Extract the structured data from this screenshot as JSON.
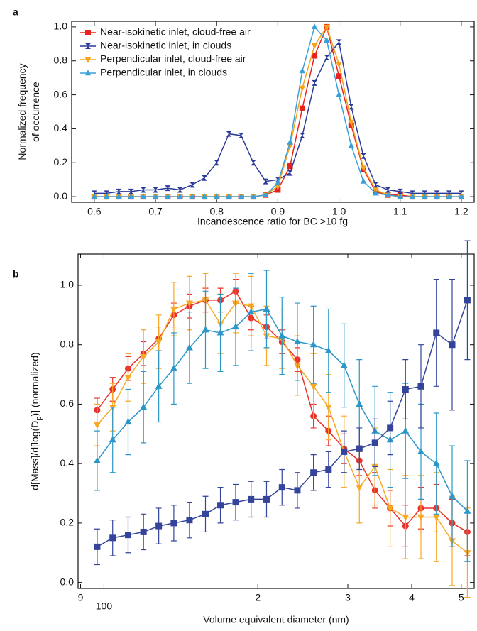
{
  "chart_data": [
    {
      "type": "line",
      "panel": "a",
      "ylabel": [
        "Normalized frequency",
        "of occurrence"
      ],
      "xlabel": "Incandescence ratio for BC >10 fg",
      "xlim": [
        0.563,
        1.221
      ],
      "ylim": [
        -0.033,
        1.033
      ],
      "xticks": [
        0.6,
        0.7,
        0.8,
        0.9,
        {
          "value": 1.0,
          "label": "1.0"
        },
        1.1,
        1.2
      ],
      "yticks": [
        {
          "value": 0,
          "label": "0.0"
        },
        0.2,
        0.4,
        0.6,
        0.8,
        {
          "value": 1.0,
          "label": "1.0"
        }
      ],
      "legend": "top-left",
      "x": [
        0.6,
        0.62,
        0.64,
        0.66,
        0.68,
        0.7,
        0.72,
        0.74,
        0.76,
        0.78,
        0.8,
        0.82,
        0.84,
        0.86,
        0.88,
        0.9,
        0.92,
        0.94,
        0.96,
        0.98,
        1.0,
        1.02,
        1.04,
        1.06,
        1.08,
        1.1,
        1.12,
        1.14,
        1.16,
        1.18,
        1.2
      ],
      "series": [
        {
          "name": "Near-isokinetic inlet, cloud-free air",
          "color": "#e8231f",
          "marker": "square",
          "values": [
            0,
            0,
            0,
            0,
            0,
            0,
            0,
            0,
            0,
            0,
            0,
            0,
            0,
            0,
            0.01,
            0.04,
            0.18,
            0.52,
            0.83,
            1.0,
            0.71,
            0.42,
            0.16,
            0.03,
            0.01,
            0.01,
            0,
            0,
            0,
            0,
            0
          ]
        },
        {
          "name": "Near-isokinetic inlet, in clouds",
          "color": "#2b3a9a",
          "marker": "bowtie",
          "values": [
            0.02,
            0.02,
            0.03,
            0.03,
            0.04,
            0.04,
            0.05,
            0.04,
            0.07,
            0.11,
            0.2,
            0.37,
            0.36,
            0.2,
            0.09,
            0.1,
            0.14,
            0.36,
            0.67,
            0.82,
            0.91,
            0.53,
            0.24,
            0.07,
            0.04,
            0.03,
            0.02,
            0.02,
            0.02,
            0.02,
            0.02
          ]
        },
        {
          "name": "Perpendicular inlet, cloud-free air",
          "color": "#f7a21b",
          "marker": "down",
          "values": [
            0,
            0,
            0,
            0,
            0,
            0,
            0,
            0,
            0,
            0,
            0,
            0,
            0,
            0,
            0.01,
            0.06,
            0.3,
            0.64,
            0.89,
            1.0,
            0.78,
            0.44,
            0.17,
            0.04,
            0.01,
            0,
            0,
            0,
            0,
            0,
            0
          ]
        },
        {
          "name": "Perpendicular inlet, in clouds",
          "color": "#3aa0d8",
          "marker": "up",
          "values": [
            0,
            0,
            0,
            0,
            0,
            0,
            0,
            0,
            0,
            0,
            0,
            0,
            0,
            0,
            0.01,
            0.08,
            0.32,
            0.74,
            1.0,
            0.92,
            0.6,
            0.3,
            0.09,
            0.02,
            0.01,
            0,
            0,
            0,
            0,
            0,
            0
          ]
        }
      ]
    },
    {
      "type": "line",
      "panel": "b",
      "ylabel": [
        "d[Mass]/d[log(D",
        "p",
        ")] (normalized)"
      ],
      "xlabel": "Volume equivalent diameter (nm)",
      "xlog": true,
      "xlim": [
        89,
        530
      ],
      "ylim": [
        -0.02,
        1.105
      ],
      "xticks": [
        {
          "value": 90,
          "label": "9"
        },
        100,
        {
          "value": 200,
          "label": "2"
        },
        {
          "value": 300,
          "label": "3"
        },
        {
          "value": 400,
          "label": "4"
        },
        {
          "value": 500,
          "label": "5"
        }
      ],
      "yticks": [
        {
          "value": 0,
          "label": "0.0"
        },
        0.2,
        0.4,
        0.6,
        0.8,
        {
          "value": 1.0,
          "label": "1.0"
        }
      ],
      "x": [
        97,
        104,
        111.5,
        119.5,
        128,
        137,
        147,
        158,
        169,
        181,
        194,
        208,
        223,
        239,
        257,
        275,
        295,
        316,
        339,
        363,
        389,
        417,
        447,
        480,
        514
      ],
      "series": [
        {
          "color": "#e8322a",
          "marker": "circle",
          "values": [
            0.58,
            0.65,
            0.72,
            0.77,
            0.82,
            0.9,
            0.93,
            0.95,
            0.95,
            0.98,
            0.89,
            0.86,
            0.81,
            0.75,
            0.56,
            0.51,
            0.45,
            0.41,
            0.31,
            0.25,
            0.19,
            0.25,
            0.25,
            0.2,
            0.17
          ],
          "errors": [
            0.04,
            0.04,
            0.04,
            0.04,
            0.04,
            0.04,
            0.04,
            0.04,
            0.04,
            0.04,
            0.04,
            0.04,
            0.04,
            0.04,
            0.04,
            0.05,
            0.05,
            0.05,
            0.06,
            0.06,
            0.07,
            0.07,
            0.08,
            0.08,
            0.08
          ]
        },
        {
          "color": "#f9a825",
          "marker": "down",
          "values": [
            0.53,
            0.59,
            0.69,
            0.76,
            0.81,
            0.92,
            0.94,
            0.95,
            0.87,
            0.94,
            0.93,
            0.83,
            0.82,
            0.73,
            0.66,
            0.59,
            0.44,
            0.32,
            0.39,
            0.25,
            0.22,
            0.22,
            0.22,
            0.14,
            0.1
          ],
          "errors": [
            0.07,
            0.08,
            0.08,
            0.09,
            0.09,
            0.09,
            0.09,
            0.09,
            0.1,
            0.1,
            0.1,
            0.1,
            0.1,
            0.1,
            0.11,
            0.11,
            0.12,
            0.12,
            0.13,
            0.13,
            0.14,
            0.14,
            0.15,
            0.15,
            0.15
          ]
        },
        {
          "color": "#2b97c9",
          "marker": "up",
          "values": [
            0.41,
            0.48,
            0.54,
            0.59,
            0.66,
            0.72,
            0.79,
            0.85,
            0.84,
            0.86,
            0.91,
            0.92,
            0.83,
            0.81,
            0.8,
            0.78,
            0.73,
            0.6,
            0.51,
            0.48,
            0.51,
            0.44,
            0.4,
            0.29,
            0.24
          ],
          "errors": [
            0.1,
            0.11,
            0.11,
            0.12,
            0.12,
            0.12,
            0.12,
            0.13,
            0.13,
            0.13,
            0.13,
            0.13,
            0.13,
            0.13,
            0.13,
            0.14,
            0.14,
            0.15,
            0.15,
            0.16,
            0.16,
            0.16,
            0.17,
            0.17,
            0.17
          ]
        },
        {
          "color": "#35449b",
          "marker": "square",
          "values": [
            0.12,
            0.15,
            0.16,
            0.17,
            0.19,
            0.2,
            0.21,
            0.23,
            0.26,
            0.27,
            0.28,
            0.28,
            0.32,
            0.31,
            0.37,
            0.38,
            0.44,
            0.45,
            0.47,
            0.52,
            0.65,
            0.66,
            0.84,
            0.8,
            0.95
          ],
          "errors": [
            0.06,
            0.06,
            0.06,
            0.06,
            0.06,
            0.06,
            0.06,
            0.06,
            0.06,
            0.06,
            0.06,
            0.06,
            0.06,
            0.06,
            0.06,
            0.06,
            0.07,
            0.07,
            0.08,
            0.09,
            0.1,
            0.14,
            0.18,
            0.22,
            0.2
          ]
        }
      ]
    }
  ]
}
